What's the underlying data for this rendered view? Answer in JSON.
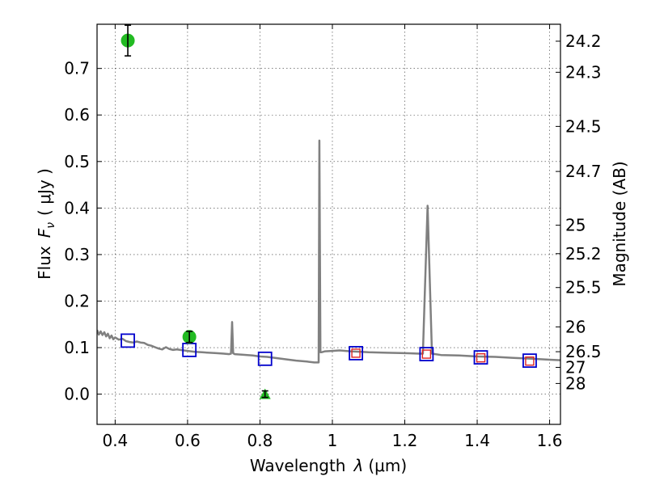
{
  "chart_data": {
    "type": "scatter",
    "title": "",
    "xlabel_prefix": "Wavelength",
    "xlabel_symbol": "λ",
    "xlabel_unit": "(μm)",
    "ylabel_prefix": "Flux",
    "ylabel_symbol": "F",
    "ylabel_subscript": "ν",
    "ylabel_unit": "( μJy )",
    "y2label": "Magnitude (AB)",
    "xlim": [
      0.35,
      1.63
    ],
    "ylim": [
      -0.065,
      0.795
    ],
    "grid": true,
    "xticks": [
      {
        "value": 0.4,
        "label": "0.4"
      },
      {
        "value": 0.6,
        "label": "0.6"
      },
      {
        "value": 0.8,
        "label": "0.8"
      },
      {
        "value": 1.0,
        "label": "1"
      },
      {
        "value": 1.2,
        "label": "1.2"
      },
      {
        "value": 1.4,
        "label": "1.4"
      },
      {
        "value": 1.6,
        "label": "1.6"
      }
    ],
    "yticks": [
      {
        "value": 0.0,
        "label": "0.0"
      },
      {
        "value": 0.1,
        "label": "0.1"
      },
      {
        "value": 0.2,
        "label": "0.2"
      },
      {
        "value": 0.3,
        "label": "0.3"
      },
      {
        "value": 0.4,
        "label": "0.4"
      },
      {
        "value": 0.5,
        "label": "0.5"
      },
      {
        "value": 0.6,
        "label": "0.6"
      },
      {
        "value": 0.7,
        "label": "0.7"
      }
    ],
    "y2ticks": [
      {
        "value": "24.2",
        "label": "24.2"
      },
      {
        "value": "24.3",
        "label": "24.3"
      },
      {
        "value": "24.5",
        "label": "24.5"
      },
      {
        "value": "24.7",
        "label": "24.7"
      },
      {
        "value": "25",
        "label": "25"
      },
      {
        "value": "25.2",
        "label": "25.2"
      },
      {
        "value": "25.5",
        "label": "25.5"
      },
      {
        "value": "26",
        "label": "26"
      },
      {
        "value": "26.5",
        "label": "26.5"
      },
      {
        "value": "27",
        "label": "27"
      },
      {
        "value": "28",
        "label": "28"
      }
    ],
    "colors": {
      "model": "#808080",
      "model_photometry": "#0000cc",
      "observed": "#22bb22",
      "upper_limit": "#22bb22",
      "errorbar": "#000000",
      "inner_square": "#dd2222"
    },
    "model_spectrum": [
      [
        0.35,
        0.138
      ],
      [
        0.355,
        0.128
      ],
      [
        0.36,
        0.135
      ],
      [
        0.365,
        0.127
      ],
      [
        0.37,
        0.133
      ],
      [
        0.375,
        0.124
      ],
      [
        0.38,
        0.13
      ],
      [
        0.385,
        0.12
      ],
      [
        0.39,
        0.126
      ],
      [
        0.395,
        0.118
      ],
      [
        0.4,
        0.122
      ],
      [
        0.41,
        0.117
      ],
      [
        0.42,
        0.119
      ],
      [
        0.43,
        0.114
      ],
      [
        0.44,
        0.112
      ],
      [
        0.45,
        0.111
      ],
      [
        0.46,
        0.113
      ],
      [
        0.47,
        0.111
      ],
      [
        0.48,
        0.11
      ],
      [
        0.49,
        0.106
      ],
      [
        0.5,
        0.104
      ],
      [
        0.51,
        0.101
      ],
      [
        0.52,
        0.098
      ],
      [
        0.53,
        0.096
      ],
      [
        0.54,
        0.101
      ],
      [
        0.55,
        0.097
      ],
      [
        0.56,
        0.095
      ],
      [
        0.57,
        0.096
      ],
      [
        0.58,
        0.095
      ],
      [
        0.59,
        0.094
      ],
      [
        0.6,
        0.093
      ],
      [
        0.62,
        0.091
      ],
      [
        0.64,
        0.09
      ],
      [
        0.66,
        0.089
      ],
      [
        0.68,
        0.088
      ],
      [
        0.7,
        0.087
      ],
      [
        0.715,
        0.086
      ],
      [
        0.72,
        0.087
      ],
      [
        0.723,
        0.155
      ],
      [
        0.726,
        0.088
      ],
      [
        0.73,
        0.086
      ],
      [
        0.75,
        0.085
      ],
      [
        0.78,
        0.083
      ],
      [
        0.8,
        0.081
      ],
      [
        0.82,
        0.08
      ],
      [
        0.85,
        0.077
      ],
      [
        0.88,
        0.074
      ],
      [
        0.9,
        0.072
      ],
      [
        0.93,
        0.07
      ],
      [
        0.95,
        0.068
      ],
      [
        0.962,
        0.068
      ],
      [
        0.964,
        0.545
      ],
      [
        0.967,
        0.09
      ],
      [
        0.97,
        0.09
      ],
      [
        0.98,
        0.092
      ],
      [
        1.0,
        0.093
      ],
      [
        1.02,
        0.094
      ],
      [
        1.05,
        0.092
      ],
      [
        1.08,
        0.091
      ],
      [
        1.1,
        0.09
      ],
      [
        1.15,
        0.089
      ],
      [
        1.2,
        0.088
      ],
      [
        1.24,
        0.087
      ],
      [
        1.25,
        0.087
      ],
      [
        1.263,
        0.405
      ],
      [
        1.275,
        0.087
      ],
      [
        1.3,
        0.084
      ],
      [
        1.35,
        0.083
      ],
      [
        1.4,
        0.081
      ],
      [
        1.45,
        0.08
      ],
      [
        1.5,
        0.078
      ],
      [
        1.55,
        0.076
      ],
      [
        1.6,
        0.074
      ],
      [
        1.63,
        0.073
      ]
    ],
    "model_photometry": [
      {
        "x": 0.435,
        "y": 0.115
      },
      {
        "x": 0.605,
        "y": 0.095
      },
      {
        "x": 0.814,
        "y": 0.076
      },
      {
        "x": 1.065,
        "y": 0.088
      },
      {
        "x": 1.26,
        "y": 0.086
      },
      {
        "x": 1.41,
        "y": 0.079
      },
      {
        "x": 1.545,
        "y": 0.072
      }
    ],
    "inner_photometry": [
      {
        "x": 1.065,
        "y": 0.088
      },
      {
        "x": 1.26,
        "y": 0.086
      },
      {
        "x": 1.41,
        "y": 0.078
      },
      {
        "x": 1.545,
        "y": 0.071
      }
    ],
    "observed": [
      {
        "x": 0.435,
        "y": 0.76,
        "err": 0.033
      },
      {
        "x": 0.605,
        "y": 0.123,
        "err": 0.012
      }
    ],
    "upper_limits": [
      {
        "x": 0.814,
        "y": 0.0,
        "err": 0.007
      }
    ]
  }
}
